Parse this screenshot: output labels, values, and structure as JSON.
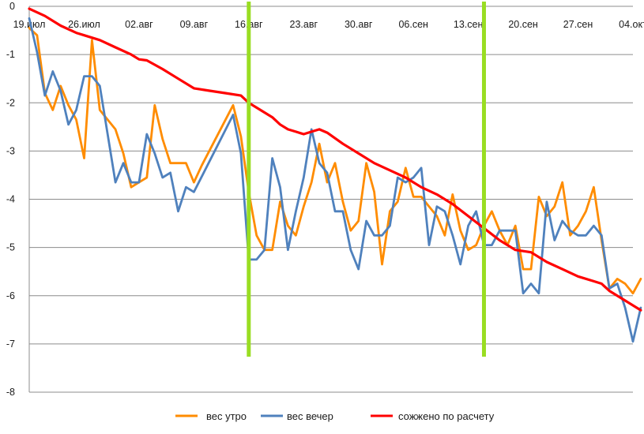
{
  "chart_data": {
    "type": "line",
    "title": "",
    "xlabel": "",
    "ylabel": "",
    "xlim": [
      "2013-07-19",
      "2013-10-04"
    ],
    "ylim": [
      -8,
      0
    ],
    "grid": true,
    "legend_placement": "bottom",
    "x_ticks": [
      "19.июл",
      "26.июл",
      "02.авг",
      "09.авг",
      "16.авг",
      "23.авг",
      "30.авг",
      "06.сен",
      "13.сен",
      "20.сен",
      "27.сен",
      "04.окт"
    ],
    "y_ticks": [
      0,
      -1,
      -2,
      -3,
      -4,
      -5,
      -6,
      -7,
      -8
    ],
    "markers": [
      {
        "x": "2013-08-16",
        "color": "#99dd22"
      },
      {
        "x": "2013-09-15",
        "color": "#99dd22"
      }
    ],
    "series": [
      {
        "name": "вес утро",
        "color": "#ff8c00",
        "points": [
          [
            "2013-07-19",
            -0.45
          ],
          [
            "2013-07-20",
            -0.6
          ],
          [
            "2013-07-21",
            -1.8
          ],
          [
            "2013-07-22",
            -2.15
          ],
          [
            "2013-07-23",
            -1.65
          ],
          [
            "2013-07-24",
            -2.05
          ],
          [
            "2013-07-25",
            -2.35
          ],
          [
            "2013-07-26",
            -3.15
          ],
          [
            "2013-07-27",
            -0.7
          ],
          [
            "2013-07-28",
            -2.15
          ],
          [
            "2013-07-29",
            -2.35
          ],
          [
            "2013-07-30",
            -2.55
          ],
          [
            "2013-07-31",
            -3.05
          ],
          [
            "2013-08-01",
            -3.75
          ],
          [
            "2013-08-02",
            -3.65
          ],
          [
            "2013-08-03",
            -3.55
          ],
          [
            "2013-08-04",
            -2.05
          ],
          [
            "2013-08-05",
            -2.75
          ],
          [
            "2013-08-06",
            -3.25
          ],
          [
            "2013-08-08",
            -3.25
          ],
          [
            "2013-08-09",
            -3.65
          ],
          [
            "2013-08-10",
            -3.3
          ],
          [
            "2013-08-14",
            -2.05
          ],
          [
            "2013-08-15",
            -2.7
          ],
          [
            "2013-08-16",
            -3.85
          ],
          [
            "2013-08-17",
            -4.75
          ],
          [
            "2013-08-18",
            -5.05
          ],
          [
            "2013-08-19",
            -5.05
          ],
          [
            "2013-08-20",
            -4.05
          ],
          [
            "2013-08-21",
            -4.55
          ],
          [
            "2013-08-22",
            -4.75
          ],
          [
            "2013-08-23",
            -4.15
          ],
          [
            "2013-08-24",
            -3.65
          ],
          [
            "2013-08-25",
            -2.85
          ],
          [
            "2013-08-26",
            -3.65
          ],
          [
            "2013-08-27",
            -3.25
          ],
          [
            "2013-08-28",
            -4.05
          ],
          [
            "2013-08-29",
            -4.65
          ],
          [
            "2013-08-30",
            -4.45
          ],
          [
            "2013-08-31",
            -3.25
          ],
          [
            "2013-09-01",
            -3.85
          ],
          [
            "2013-09-02",
            -5.35
          ],
          [
            "2013-09-03",
            -4.25
          ],
          [
            "2013-09-04",
            -4.05
          ],
          [
            "2013-09-05",
            -3.35
          ],
          [
            "2013-09-06",
            -3.95
          ],
          [
            "2013-09-07",
            -3.95
          ],
          [
            "2013-09-08",
            -4.15
          ],
          [
            "2013-09-09",
            -4.35
          ],
          [
            "2013-09-10",
            -4.75
          ],
          [
            "2013-09-11",
            -3.9
          ],
          [
            "2013-09-12",
            -4.65
          ],
          [
            "2013-09-13",
            -5.05
          ],
          [
            "2013-09-14",
            -4.95
          ],
          [
            "2013-09-15",
            -4.55
          ],
          [
            "2013-09-16",
            -4.25
          ],
          [
            "2013-09-17",
            -4.65
          ],
          [
            "2013-09-18",
            -4.95
          ],
          [
            "2013-09-19",
            -4.55
          ],
          [
            "2013-09-20",
            -5.45
          ],
          [
            "2013-09-21",
            -5.45
          ],
          [
            "2013-09-22",
            -3.95
          ],
          [
            "2013-09-23",
            -4.35
          ],
          [
            "2013-09-24",
            -4.15
          ],
          [
            "2013-09-25",
            -3.65
          ],
          [
            "2013-09-26",
            -4.75
          ],
          [
            "2013-09-27",
            -4.55
          ],
          [
            "2013-09-28",
            -4.25
          ],
          [
            "2013-09-29",
            -3.75
          ],
          [
            "2013-09-30",
            -4.85
          ],
          [
            "2013-10-01",
            -5.85
          ],
          [
            "2013-10-02",
            -5.65
          ],
          [
            "2013-10-03",
            -5.75
          ],
          [
            "2013-10-04",
            -5.95
          ],
          [
            "2013-10-05",
            -5.65
          ]
        ]
      },
      {
        "name": "вес вечер",
        "color": "#4f81bd",
        "points": [
          [
            "2013-07-19",
            -0.25
          ],
          [
            "2013-07-20",
            -0.95
          ],
          [
            "2013-07-21",
            -1.85
          ],
          [
            "2013-07-22",
            -1.35
          ],
          [
            "2013-07-23",
            -1.75
          ],
          [
            "2013-07-24",
            -2.45
          ],
          [
            "2013-07-25",
            -2.15
          ],
          [
            "2013-07-26",
            -1.45
          ],
          [
            "2013-07-27",
            -1.45
          ],
          [
            "2013-07-28",
            -1.65
          ],
          [
            "2013-07-29",
            -2.65
          ],
          [
            "2013-07-30",
            -3.65
          ],
          [
            "2013-07-31",
            -3.25
          ],
          [
            "2013-08-01",
            -3.65
          ],
          [
            "2013-08-02",
            -3.65
          ],
          [
            "2013-08-03",
            -2.65
          ],
          [
            "2013-08-04",
            -3.05
          ],
          [
            "2013-08-05",
            -3.55
          ],
          [
            "2013-08-06",
            -3.45
          ],
          [
            "2013-08-07",
            -4.25
          ],
          [
            "2013-08-08",
            -3.75
          ],
          [
            "2013-08-09",
            -3.85
          ],
          [
            "2013-08-14",
            -2.25
          ],
          [
            "2013-08-15",
            -3.05
          ],
          [
            "2013-08-16",
            -5.25
          ],
          [
            "2013-08-17",
            -5.25
          ],
          [
            "2013-08-18",
            -5.05
          ],
          [
            "2013-08-19",
            -3.15
          ],
          [
            "2013-08-20",
            -3.75
          ],
          [
            "2013-08-21",
            -5.05
          ],
          [
            "2013-08-22",
            -4.25
          ],
          [
            "2013-08-23",
            -3.55
          ],
          [
            "2013-08-24",
            -2.55
          ],
          [
            "2013-08-25",
            -3.25
          ],
          [
            "2013-08-26",
            -3.45
          ],
          [
            "2013-08-27",
            -4.25
          ],
          [
            "2013-08-28",
            -4.25
          ],
          [
            "2013-08-29",
            -5.05
          ],
          [
            "2013-08-30",
            -5.45
          ],
          [
            "2013-08-31",
            -4.45
          ],
          [
            "2013-09-01",
            -4.75
          ],
          [
            "2013-09-02",
            -4.75
          ],
          [
            "2013-09-03",
            -4.55
          ],
          [
            "2013-09-04",
            -3.55
          ],
          [
            "2013-09-05",
            -3.65
          ],
          [
            "2013-09-06",
            -3.55
          ],
          [
            "2013-09-07",
            -3.35
          ],
          [
            "2013-09-08",
            -4.95
          ],
          [
            "2013-09-09",
            -4.15
          ],
          [
            "2013-09-10",
            -4.25
          ],
          [
            "2013-09-11",
            -4.75
          ],
          [
            "2013-09-12",
            -5.35
          ],
          [
            "2013-09-13",
            -4.55
          ],
          [
            "2013-09-14",
            -4.25
          ],
          [
            "2013-09-15",
            -4.95
          ],
          [
            "2013-09-16",
            -4.95
          ],
          [
            "2013-09-17",
            -4.65
          ],
          [
            "2013-09-18",
            -4.65
          ],
          [
            "2013-09-19",
            -4.65
          ],
          [
            "2013-09-20",
            -5.95
          ],
          [
            "2013-09-21",
            -5.75
          ],
          [
            "2013-09-22",
            -5.95
          ],
          [
            "2013-09-23",
            -4.05
          ],
          [
            "2013-09-24",
            -4.85
          ],
          [
            "2013-09-25",
            -4.45
          ],
          [
            "2013-09-26",
            -4.65
          ],
          [
            "2013-09-27",
            -4.75
          ],
          [
            "2013-09-28",
            -4.75
          ],
          [
            "2013-09-29",
            -4.55
          ],
          [
            "2013-09-30",
            -4.75
          ],
          [
            "2013-10-01",
            -5.85
          ],
          [
            "2013-10-02",
            -5.75
          ],
          [
            "2013-10-03",
            -6.25
          ],
          [
            "2013-10-04",
            -6.95
          ],
          [
            "2013-10-05",
            -6.25
          ]
        ]
      },
      {
        "name": "сожжено по расчету",
        "color": "#ff0000",
        "points": [
          [
            "2013-07-19",
            -0.05
          ],
          [
            "2013-07-21",
            -0.2
          ],
          [
            "2013-07-23",
            -0.4
          ],
          [
            "2013-07-25",
            -0.55
          ],
          [
            "2013-07-26",
            -0.6
          ],
          [
            "2013-07-28",
            -0.7
          ],
          [
            "2013-07-30",
            -0.85
          ],
          [
            "2013-08-01",
            -1.0
          ],
          [
            "2013-08-02",
            -1.1
          ],
          [
            "2013-08-03",
            -1.12
          ],
          [
            "2013-08-05",
            -1.3
          ],
          [
            "2013-08-07",
            -1.5
          ],
          [
            "2013-08-09",
            -1.7
          ],
          [
            "2013-08-11",
            -1.75
          ],
          [
            "2013-08-13",
            -1.8
          ],
          [
            "2013-08-15",
            -1.85
          ],
          [
            "2013-08-16",
            -2.0
          ],
          [
            "2013-08-17",
            -2.1
          ],
          [
            "2013-08-19",
            -2.3
          ],
          [
            "2013-08-20",
            -2.45
          ],
          [
            "2013-08-21",
            -2.55
          ],
          [
            "2013-08-22",
            -2.6
          ],
          [
            "2013-08-23",
            -2.65
          ],
          [
            "2013-08-24",
            -2.6
          ],
          [
            "2013-08-25",
            -2.55
          ],
          [
            "2013-08-26",
            -2.62
          ],
          [
            "2013-08-28",
            -2.85
          ],
          [
            "2013-08-30",
            -3.05
          ],
          [
            "2013-09-01",
            -3.25
          ],
          [
            "2013-09-03",
            -3.4
          ],
          [
            "2013-09-05",
            -3.55
          ],
          [
            "2013-09-07",
            -3.75
          ],
          [
            "2013-09-09",
            -3.9
          ],
          [
            "2013-09-11",
            -4.1
          ],
          [
            "2013-09-13",
            -4.35
          ],
          [
            "2013-09-15",
            -4.6
          ],
          [
            "2013-09-17",
            -4.85
          ],
          [
            "2013-09-19",
            -5.05
          ],
          [
            "2013-09-21",
            -5.1
          ],
          [
            "2013-09-23",
            -5.3
          ],
          [
            "2013-09-25",
            -5.45
          ],
          [
            "2013-09-27",
            -5.6
          ],
          [
            "2013-09-29",
            -5.7
          ],
          [
            "2013-09-30",
            -5.75
          ],
          [
            "2013-10-01",
            -5.9
          ],
          [
            "2013-10-03",
            -6.1
          ],
          [
            "2013-10-05",
            -6.3
          ]
        ]
      }
    ]
  }
}
